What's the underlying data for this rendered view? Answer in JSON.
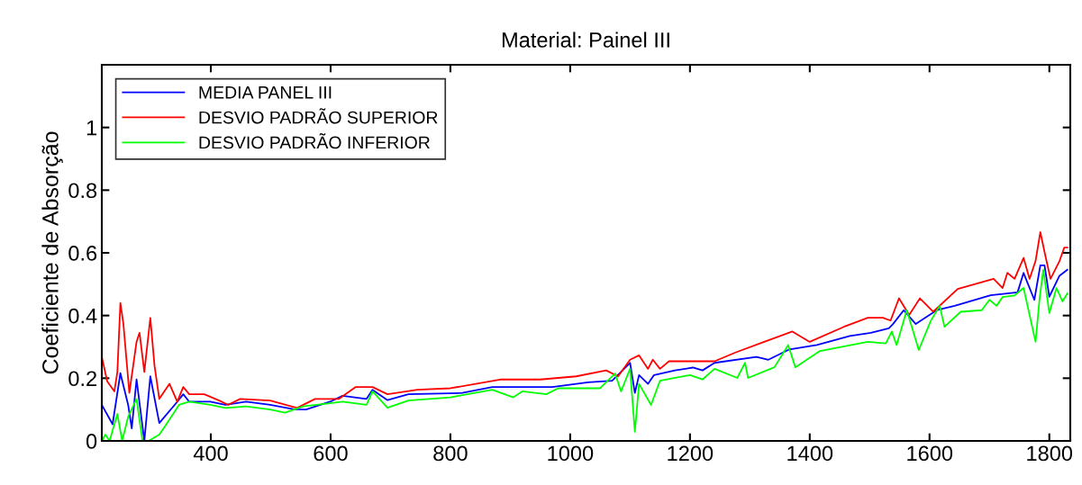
{
  "chart_data": {
    "type": "line",
    "title": "Material: Painel III",
    "ylabel": "Coeficiente de Absorção",
    "xlim": [
      218,
      1835
    ],
    "xticks": [
      400,
      600,
      800,
      1000,
      1200,
      1400,
      1600,
      1800
    ],
    "ylim": [
      0,
      1.2
    ],
    "yticks": [
      0,
      {
        "value": 0.2,
        "label": "0.2"
      },
      {
        "value": 0.4,
        "label": "0.4"
      },
      {
        "value": 0.6,
        "label": "0.6"
      },
      {
        "value": 0.8,
        "label": "0.8"
      },
      1
    ],
    "grid": false,
    "legend": "top left",
    "marker": "none",
    "line_style": "solid",
    "series": [
      {
        "name": "MEDIA PANEL III",
        "color": "#0000ff",
        "x": [
          218,
          236,
          249,
          262,
          268,
          276,
          289,
          299,
          314,
          344,
          354,
          364,
          399,
          424,
          459,
          499,
          539,
          559,
          599,
          620,
          660,
          670,
          695,
          730,
          820,
          870,
          970,
          1030,
          1070,
          1100,
          1108,
          1115,
          1130,
          1140,
          1175,
          1205,
          1221,
          1241,
          1311,
          1331,
          1366,
          1412,
          1467,
          1502,
          1532,
          1539,
          1557,
          1577,
          1612,
          1642,
          1702,
          1747,
          1757,
          1775,
          1785,
          1792,
          1800,
          1817,
          1830
        ],
        "values": [
          0.115,
          0.053,
          0.216,
          0.115,
          0.04,
          0.196,
          0,
          0.206,
          0.057,
          0.125,
          0.149,
          0.125,
          0.125,
          0.115,
          0.125,
          0.115,
          0.101,
          0.1,
          0.125,
          0.144,
          0.134,
          0.163,
          0.13,
          0.149,
          0.153,
          0.172,
          0.172,
          0.187,
          0.192,
          0.249,
          0.153,
          0.21,
          0.182,
          0.21,
          0.225,
          0.234,
          0.225,
          0.249,
          0.268,
          0.259,
          0.292,
          0.306,
          0.335,
          0.345,
          0.359,
          0.373,
          0.417,
          0.373,
          0.417,
          0.431,
          0.465,
          0.474,
          0.536,
          0.45,
          0.56,
          0.56,
          0.46,
          0.527,
          0.546
        ]
      },
      {
        "name": "DESVIO PADRÃO SUPERIOR",
        "color": "#ff0000",
        "x": [
          218,
          227,
          239,
          244,
          249,
          254,
          264,
          276,
          281,
          289,
          299,
          306,
          314,
          331,
          344,
          354,
          364,
          389,
          414,
          429,
          449,
          499,
          544,
          574,
          614,
          642,
          670,
          695,
          745,
          800,
          885,
          950,
          1010,
          1060,
          1080,
          1100,
          1115,
          1130,
          1138,
          1150,
          1165,
          1210,
          1241,
          1276,
          1324,
          1371,
          1400,
          1457,
          1497,
          1522,
          1535,
          1549,
          1566,
          1584,
          1606,
          1647,
          1707,
          1722,
          1730,
          1742,
          1757,
          1767,
          1777,
          1785,
          1792,
          1802,
          1817,
          1825,
          1830
        ],
        "values": [
          0.268,
          0.19,
          0.158,
          0.22,
          0.44,
          0.374,
          0.153,
          0.316,
          0.345,
          0.22,
          0.392,
          0.24,
          0.134,
          0.182,
          0.125,
          0.172,
          0.149,
          0.149,
          0.129,
          0.115,
          0.134,
          0.129,
          0.105,
          0.134,
          0.134,
          0.172,
          0.172,
          0.149,
          0.163,
          0.168,
          0.196,
          0.196,
          0.206,
          0.225,
          0.206,
          0.259,
          0.273,
          0.23,
          0.259,
          0.23,
          0.254,
          0.254,
          0.254,
          0.282,
          0.316,
          0.349,
          0.316,
          0.364,
          0.393,
          0.393,
          0.384,
          0.455,
          0.402,
          0.455,
          0.412,
          0.485,
          0.517,
          0.488,
          0.536,
          0.517,
          0.584,
          0.517,
          0.574,
          0.666,
          0.603,
          0.517,
          0.574,
          0.617,
          0.617
        ]
      },
      {
        "name": "DESVIO PADRÃO INFERIOR",
        "color": "#00ff00",
        "x": [
          218,
          224,
          231,
          244,
          252,
          262,
          276,
          286,
          296,
          314,
          324,
          347,
          364,
          399,
          424,
          459,
          499,
          524,
          554,
          599,
          620,
          660,
          670,
          695,
          730,
          800,
          870,
          905,
          920,
          960,
          980,
          1050,
          1075,
          1085,
          1100,
          1108,
          1115,
          1135,
          1150,
          1175,
          1200,
          1221,
          1241,
          1279,
          1292,
          1297,
          1341,
          1364,
          1376,
          1417,
          1497,
          1527,
          1537,
          1545,
          1562,
          1582,
          1602,
          1617,
          1625,
          1652,
          1687,
          1700,
          1712,
          1722,
          1742,
          1757,
          1777,
          1784,
          1790,
          1800,
          1812,
          1822,
          1830
        ],
        "values": [
          0,
          0.02,
          0,
          0.086,
          0,
          0.077,
          0.134,
          0,
          0,
          0.02,
          0.048,
          0.115,
          0.125,
          0.115,
          0.105,
          0.11,
          0.1,
          0.09,
          0.11,
          0.12,
          0.125,
          0.115,
          0.158,
          0.106,
          0.129,
          0.139,
          0.163,
          0.139,
          0.158,
          0.149,
          0.168,
          0.168,
          0.215,
          0.158,
          0.23,
          0.029,
          0.182,
          0.115,
          0.192,
          0.201,
          0.21,
          0.196,
          0.23,
          0.201,
          0.249,
          0.201,
          0.235,
          0.306,
          0.235,
          0.287,
          0.316,
          0.311,
          0.349,
          0.306,
          0.417,
          0.29,
          0.383,
          0.431,
          0.364,
          0.412,
          0.417,
          0.45,
          0.431,
          0.459,
          0.464,
          0.488,
          0.316,
          0.459,
          0.546,
          0.408,
          0.488,
          0.445,
          0.47
        ]
      }
    ]
  }
}
